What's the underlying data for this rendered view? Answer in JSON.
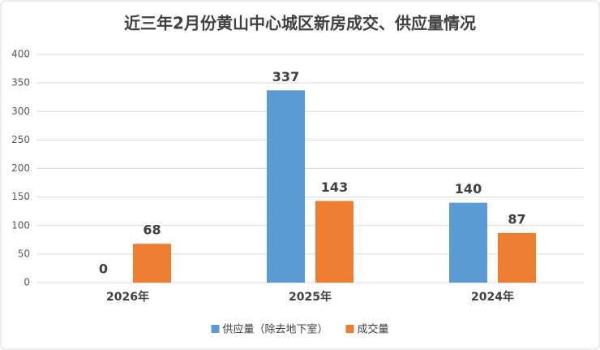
{
  "chart_data": {
    "type": "bar",
    "title": "近三年2月份黄山中心城区新房成交、供应量情况",
    "categories": [
      "2026年",
      "2025年",
      "2024年"
    ],
    "series": [
      {
        "name": "供应量（除去地下室）",
        "color": "#5b9bd5",
        "values": [
          0,
          337,
          140
        ]
      },
      {
        "name": "成交量",
        "color": "#ed7d31",
        "values": [
          68,
          143,
          87
        ]
      }
    ],
    "ylim": [
      0,
      400
    ],
    "yticks": [
      0,
      50,
      100,
      150,
      200,
      250,
      300,
      350,
      400
    ],
    "grid": true
  }
}
